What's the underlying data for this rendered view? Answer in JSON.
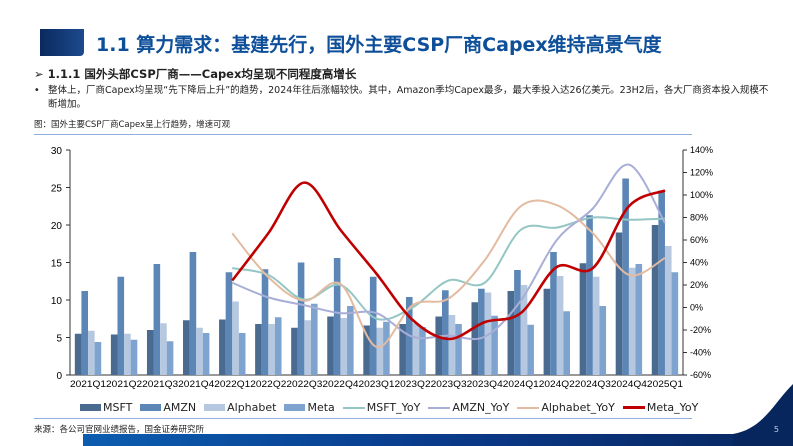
{
  "header": {
    "title": "1.1 算力需求：基建先行，国外主要CSP厂商Capex维持高景气度"
  },
  "section": {
    "subtitle": "1.1.1 国外头部CSP厂商——Capex均呈现不同程度高增长",
    "bullet": "•",
    "body": "整体上，厂商Capex均呈现“先下降后上升”的趋势，2024年往后涨幅较快。其中，Amazon季均Capex最多，最大季投入达26亿美元。23H2后，各大厂商资本投入规模不断增加。",
    "figure_caption": "图：国外主要CSP厂商Capex呈上行趋势，增速可观"
  },
  "footer": {
    "source": "来源：各公司官网业绩报告，国金证券研究所",
    "page": "5"
  },
  "chart_data": {
    "type": "bar+line",
    "categories": [
      "2021Q1",
      "2021Q2",
      "2021Q3",
      "2021Q4",
      "2022Q1",
      "2022Q2",
      "2022Q3",
      "2022Q4",
      "2023Q1",
      "2023Q2",
      "2023Q3",
      "2023Q4",
      "2024Q1",
      "2024Q2",
      "2024Q3",
      "2024Q4",
      "2025Q1"
    ],
    "left_axis": {
      "ylim": [
        0,
        30
      ],
      "ticks": [
        "0",
        "5",
        "10",
        "15",
        "20",
        "25",
        "30"
      ]
    },
    "right_axis": {
      "ylim": [
        -60,
        140
      ],
      "ticks": [
        "-60%",
        "-40%",
        "-20%",
        "0%",
        "20%",
        "40%",
        "60%",
        "80%",
        "100%",
        "120%",
        "140%"
      ]
    },
    "bars": [
      {
        "name": "MSFT",
        "color": "#4a6a90",
        "values": [
          5.5,
          5.4,
          6.0,
          7.3,
          7.4,
          6.8,
          6.3,
          7.8,
          6.6,
          6.8,
          7.8,
          9.7,
          11.2,
          11.5,
          14.9,
          19.0,
          20.0
        ]
      },
      {
        "name": "AMZN",
        "color": "#5b86b6",
        "values": [
          11.2,
          13.1,
          14.8,
          16.4,
          13.7,
          14.1,
          15.0,
          15.6,
          13.1,
          10.4,
          11.3,
          11.5,
          14.0,
          16.4,
          21.3,
          26.2,
          24.6
        ]
      },
      {
        "name": "Alphabet",
        "color": "#b6c8e0",
        "values": [
          5.9,
          5.5,
          6.9,
          6.3,
          9.8,
          6.8,
          7.3,
          7.6,
          6.3,
          6.9,
          8.0,
          11.0,
          12.0,
          13.2,
          13.1,
          14.3,
          17.2
        ]
      },
      {
        "name": "Meta",
        "color": "#7fa3cf",
        "values": [
          4.4,
          4.7,
          4.5,
          5.6,
          5.6,
          7.7,
          9.5,
          9.2,
          7.1,
          6.4,
          6.8,
          7.9,
          6.7,
          8.5,
          9.2,
          14.8,
          13.7
        ]
      }
    ],
    "lines": [
      {
        "name": "MSFT_YoY",
        "color": "#93c6c4",
        "values": [
          null,
          null,
          null,
          null,
          35,
          29,
          7,
          20,
          -10,
          0,
          24,
          22,
          69,
          71,
          80,
          78,
          79
        ]
      },
      {
        "name": "AMZN_YoY",
        "color": "#a8aed6",
        "values": [
          null,
          null,
          null,
          null,
          22,
          9,
          2,
          -5,
          -5,
          -26,
          -25,
          -26,
          6,
          60,
          88,
          127,
          75
        ]
      },
      {
        "name": "Alphabet_YoY",
        "color": "#e2bba0",
        "values": [
          null,
          null,
          null,
          null,
          66,
          27,
          6,
          21,
          -35,
          2,
          8,
          42,
          90,
          91,
          66,
          29,
          44
        ]
      },
      {
        "name": "Meta_YoY",
        "color": "#c00000",
        "values": [
          null,
          null,
          null,
          null,
          24,
          66,
          111,
          69,
          30,
          -11,
          -28,
          -13,
          -5,
          36,
          35,
          90,
          104
        ]
      }
    ]
  }
}
